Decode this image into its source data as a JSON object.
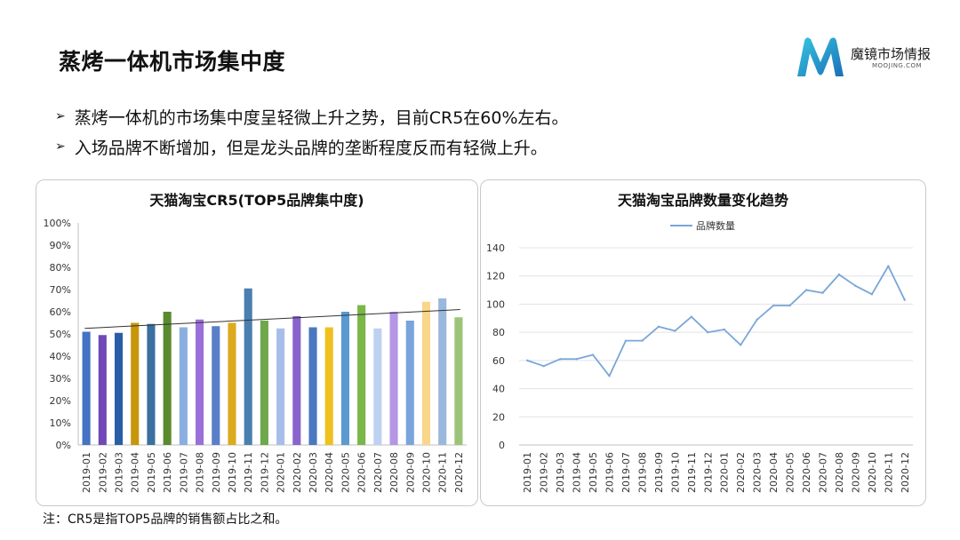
{
  "page": {
    "title": "蒸烤一体机市场集中度",
    "bullets": [
      "蒸烤一体机的市场集中度呈轻微上升之势，目前CR5在60%左右。",
      "入场品牌不断增加，但是龙头品牌的垄断程度反而有轻微上升。"
    ],
    "note": "注：CR5是指TOP5品牌的销售额占比之和。"
  },
  "logo": {
    "name": "魔镜市场情报",
    "domain": "MOOJING.COM",
    "colors": [
      "#29b6d4",
      "#1565a8"
    ]
  },
  "icons": {
    "bullet": "arrow-bullet-icon"
  },
  "chart_data": [
    {
      "type": "bar",
      "title": "天猫淘宝CR5(TOP5品牌集中度)",
      "categories": [
        "2019-01",
        "2019-02",
        "2019-03",
        "2019-04",
        "2019-05",
        "2019-06",
        "2019-07",
        "2019-08",
        "2019-09",
        "2019-10",
        "2019-11",
        "2019-12",
        "2020-01",
        "2020-02",
        "2020-03",
        "2020-04",
        "2020-05",
        "2020-06",
        "2020-07",
        "2020-08",
        "2020-09",
        "2020-10",
        "2020-11",
        "2020-12"
      ],
      "values": [
        51,
        49.5,
        50.5,
        55,
        54.5,
        60,
        53,
        56.5,
        53.5,
        55,
        70.5,
        56,
        52.5,
        58,
        53,
        53,
        60,
        63,
        52.5,
        60,
        56,
        64.5,
        66,
        57.5
      ],
      "colors": [
        "#4472c4",
        "#7048b8",
        "#2a5da8",
        "#c8960a",
        "#3b6fa0",
        "#5a8a2e",
        "#8aaee0",
        "#9b6fd8",
        "#5a7fc8",
        "#dcaa1e",
        "#4a7fb0",
        "#6ea84a",
        "#a7bfe8",
        "#8a64cc",
        "#4a78c0",
        "#f0c020",
        "#5a9ad0",
        "#7ab648",
        "#bdd2f0",
        "#b496e4",
        "#7aa4dc",
        "#f8d68a",
        "#9ab8dc",
        "#9cc478"
      ],
      "trendline": {
        "start": 52.5,
        "end": 61
      },
      "ylim": [
        0,
        100
      ],
      "yticks": [
        "0%",
        "10%",
        "20%",
        "30%",
        "40%",
        "50%",
        "60%",
        "70%",
        "80%",
        "90%",
        "100%"
      ],
      "xlabel": "",
      "ylabel": "",
      "grid": false
    },
    {
      "type": "line",
      "title": "天猫淘宝品牌数量变化趋势",
      "categories": [
        "2019-01",
        "2019-02",
        "2019-03",
        "2019-04",
        "2019-05",
        "2019-06",
        "2019-07",
        "2019-08",
        "2019-09",
        "2019-10",
        "2019-11",
        "2019-12",
        "2020-01",
        "2020-02",
        "2020-03",
        "2020-04",
        "2020-05",
        "2020-06",
        "2020-07",
        "2020-08",
        "2020-09",
        "2020-10",
        "2020-11",
        "2020-12"
      ],
      "series": [
        {
          "name": "品牌数量",
          "color": "#7aa6d8",
          "values": [
            60,
            56,
            61,
            61,
            64,
            49,
            74,
            74,
            84,
            81,
            91,
            80,
            82,
            71,
            89,
            99,
            99,
            110,
            108,
            121,
            113,
            107,
            127,
            103
          ]
        }
      ],
      "ylim": [
        0,
        140
      ],
      "yticks": [
        "0",
        "20",
        "40",
        "60",
        "80",
        "100",
        "120",
        "140"
      ],
      "legend": "top-center",
      "grid": true,
      "xlabel": "",
      "ylabel": ""
    }
  ]
}
